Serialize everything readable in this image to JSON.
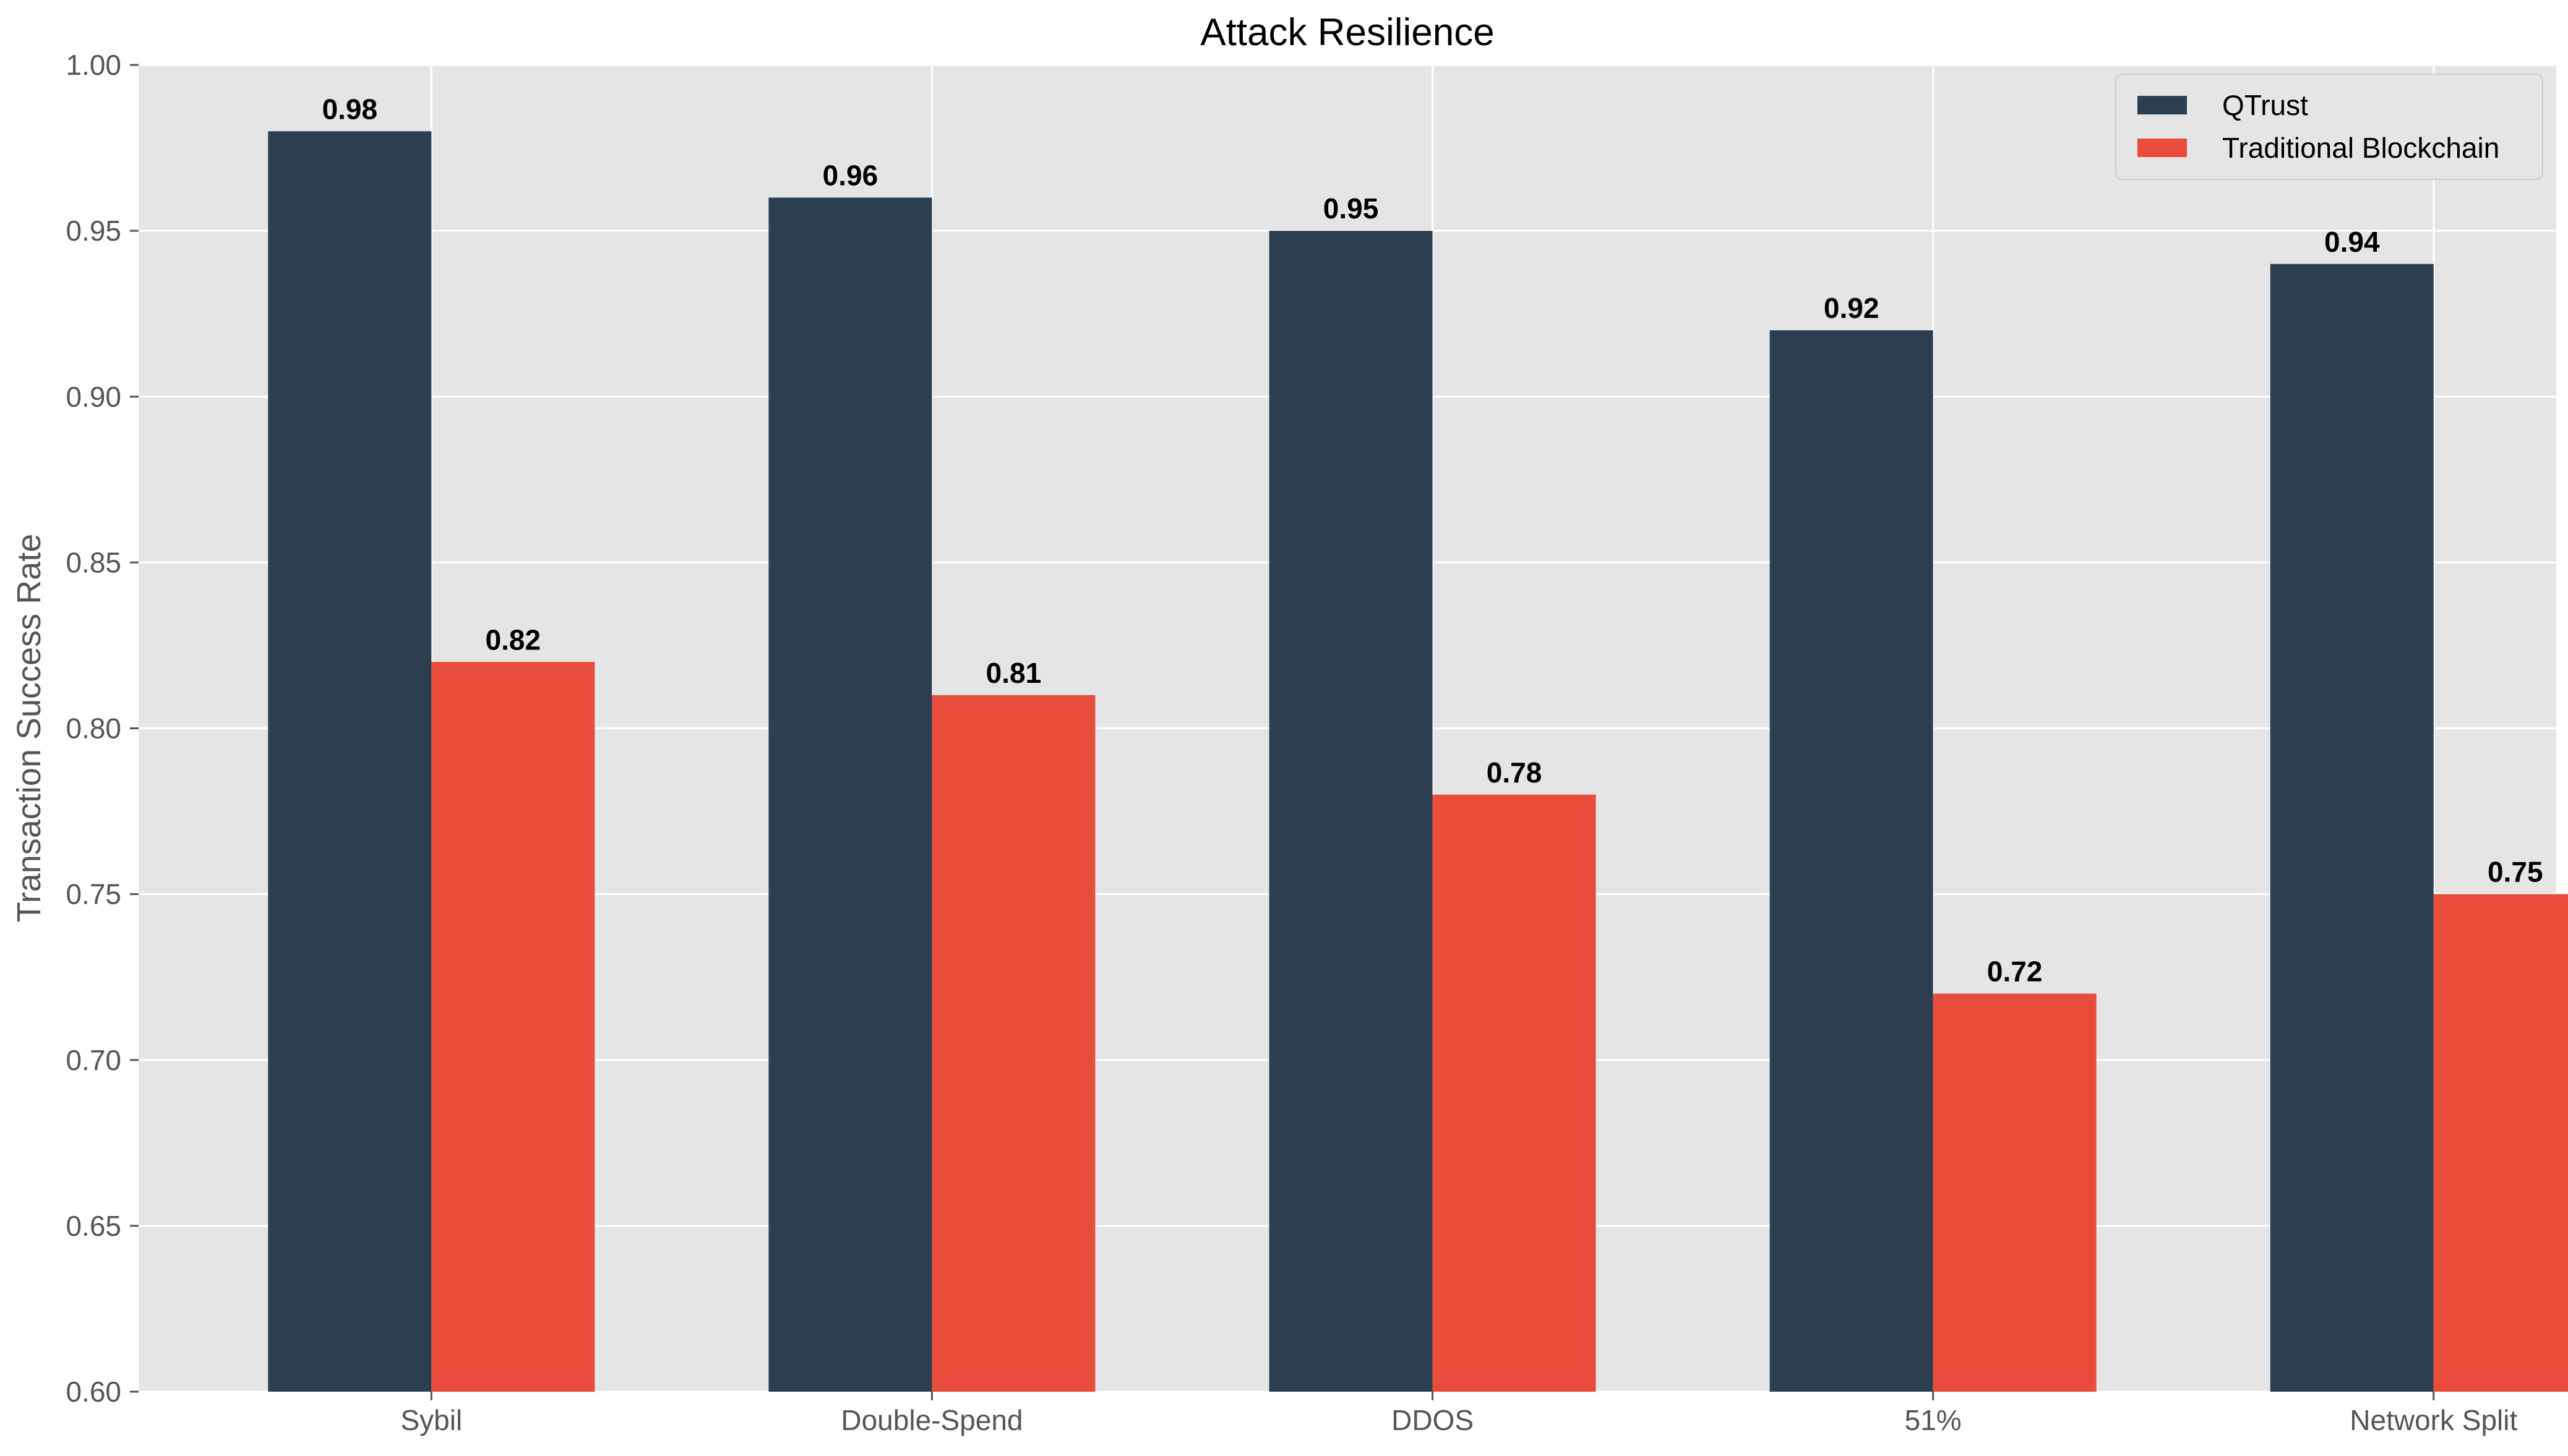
{
  "chart_data": {
    "type": "bar",
    "title": "Attack Resilience",
    "xlabel": "",
    "ylabel": "Transaction Success Rate",
    "categories": [
      "Sybil",
      "Double-Spend",
      "DDOS",
      "51%",
      "Network Split"
    ],
    "series": [
      {
        "name": "QTrust",
        "color": "#2c3e50",
        "values": [
          0.98,
          0.96,
          0.95,
          0.92,
          0.94
        ],
        "labels": [
          "0.98",
          "0.96",
          "0.95",
          "0.92",
          "0.94"
        ]
      },
      {
        "name": "Traditional Blockchain",
        "color": "#e74c3c",
        "values": [
          0.82,
          0.81,
          0.78,
          0.72,
          0.75
        ],
        "labels": [
          "0.82",
          "0.81",
          "0.78",
          "0.72",
          "0.75"
        ]
      }
    ],
    "ylim": [
      0.6,
      1.0
    ],
    "yticks": [
      "0.60",
      "0.65",
      "0.70",
      "0.75",
      "0.80",
      "0.85",
      "0.90",
      "0.95",
      "1.00"
    ],
    "grid": true,
    "legend_position": "top-right",
    "background": "#e5e5e5"
  }
}
